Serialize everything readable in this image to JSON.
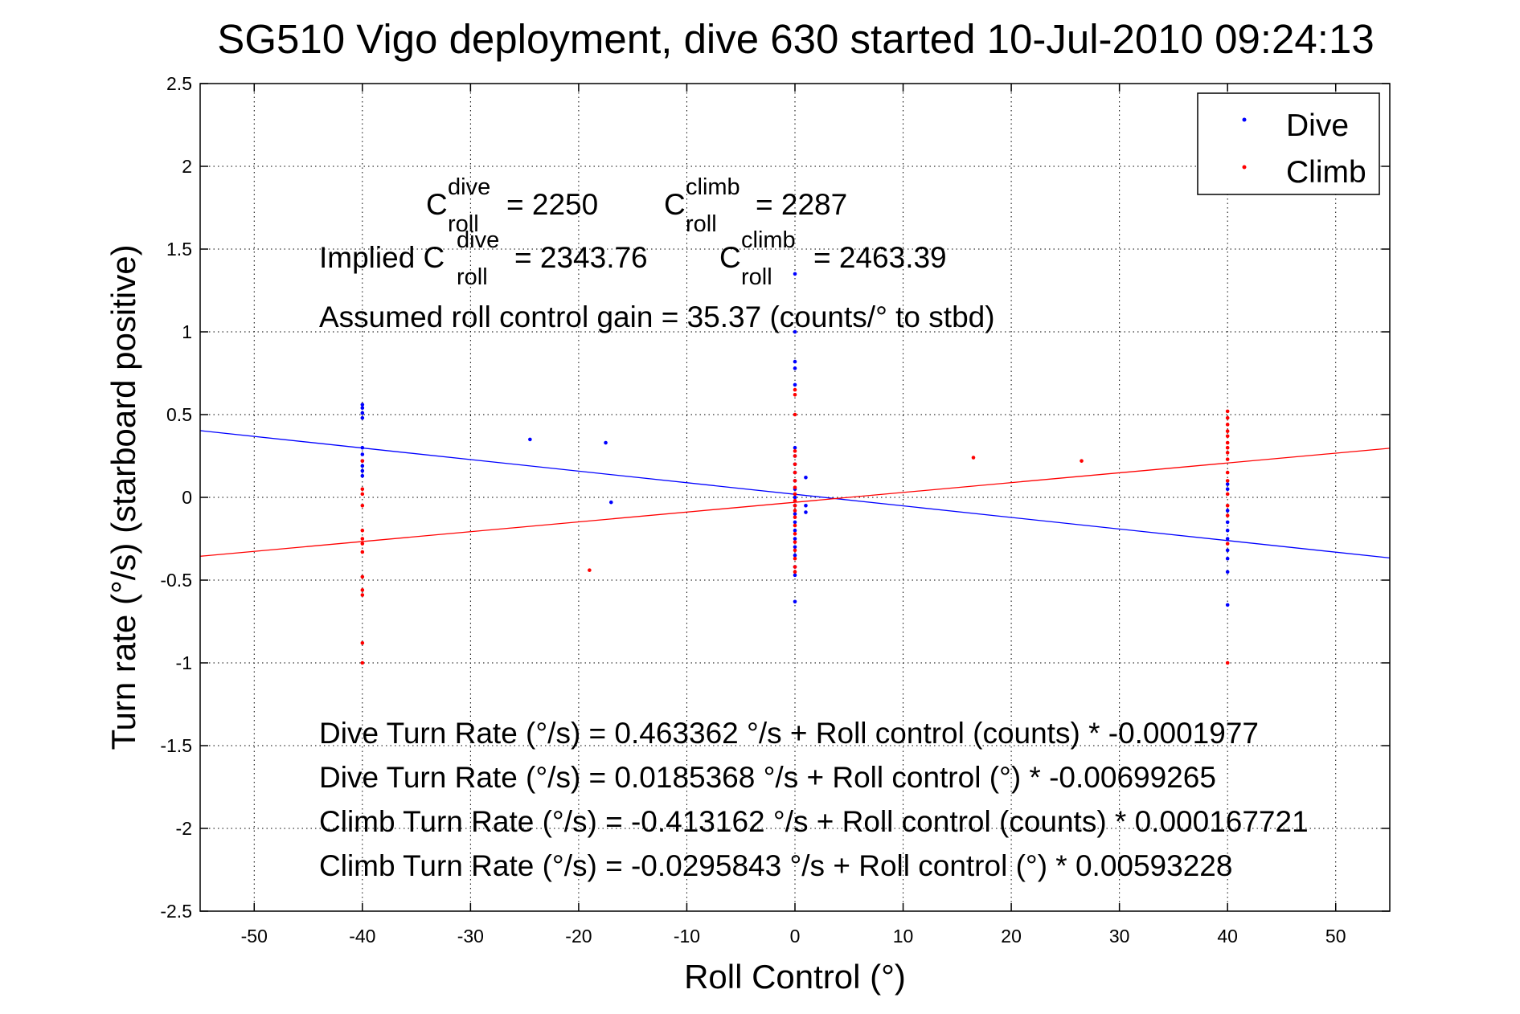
{
  "chart_data": {
    "type": "scatter",
    "title": "SG510 Vigo deployment, dive 630 started 10-Jul-2010 09:24:13",
    "xlabel": "Roll Control (°)",
    "ylabel": "Turn rate (°/s)  (starboard positive)",
    "xlim": [
      -55,
      55
    ],
    "ylim": [
      -2.5,
      2.5
    ],
    "xticks": [
      -50,
      -40,
      -30,
      -20,
      -10,
      0,
      10,
      20,
      30,
      40,
      50
    ],
    "yticks": [
      -2.5,
      -2,
      -1.5,
      -1,
      -0.5,
      0,
      0.5,
      1,
      1.5,
      2,
      2.5
    ],
    "xtick_labels": [
      "-50",
      "-40",
      "-30",
      "-20",
      "-10",
      "0",
      "10",
      "20",
      "30",
      "40",
      "50"
    ],
    "ytick_labels": [
      "-2.5",
      "-2",
      "-1.5",
      "-1",
      "-0.5",
      "0",
      "0.5",
      "1",
      "1.5",
      "2",
      "2.5"
    ],
    "grid": true,
    "legend_position": "top-right",
    "series": [
      {
        "name": "Dive",
        "color": "#0000ff",
        "points": [
          [
            -40,
            0.56
          ],
          [
            -40,
            0.54
          ],
          [
            -40,
            0.51
          ],
          [
            -40,
            0.48
          ],
          [
            -40,
            0.3
          ],
          [
            -40,
            0.26
          ],
          [
            -40,
            0.22
          ],
          [
            -40,
            0.19
          ],
          [
            -40,
            0.16
          ],
          [
            -40,
            0.13
          ],
          [
            -24.5,
            0.35
          ],
          [
            -17.5,
            0.33
          ],
          [
            -17,
            -0.03
          ],
          [
            0,
            1.35
          ],
          [
            0,
            1.0
          ],
          [
            0,
            0.82
          ],
          [
            0,
            0.78
          ],
          [
            0,
            0.68
          ],
          [
            0,
            0.3
          ],
          [
            0,
            0.25
          ],
          [
            0,
            0.2
          ],
          [
            0,
            0.15
          ],
          [
            0,
            0.1
          ],
          [
            0,
            0.05
          ],
          [
            0,
            0.0
          ],
          [
            0,
            -0.05
          ],
          [
            0,
            -0.1
          ],
          [
            0,
            -0.15
          ],
          [
            0,
            -0.2
          ],
          [
            0,
            -0.25
          ],
          [
            0,
            -0.3
          ],
          [
            0,
            -0.35
          ],
          [
            0,
            -0.42
          ],
          [
            0,
            -0.47
          ],
          [
            0,
            -0.63
          ],
          [
            1,
            0.12
          ],
          [
            1,
            -0.05
          ],
          [
            1,
            -0.09
          ],
          [
            40,
            0.08
          ],
          [
            40,
            0.05
          ],
          [
            40,
            -0.08
          ],
          [
            40,
            -0.15
          ],
          [
            40,
            -0.2
          ],
          [
            40,
            -0.25
          ],
          [
            40,
            -0.32
          ],
          [
            40,
            -0.37
          ],
          [
            40,
            -0.45
          ],
          [
            40,
            -0.65
          ]
        ],
        "fit": {
          "intercept": 0.0185368,
          "slope": -0.00699265
        }
      },
      {
        "name": "Climb",
        "color": "#ff0000",
        "points": [
          [
            -40,
            0.22
          ],
          [
            -40,
            0.05
          ],
          [
            -40,
            0.02
          ],
          [
            -40,
            -0.05
          ],
          [
            -40,
            -0.2
          ],
          [
            -40,
            -0.25
          ],
          [
            -40,
            -0.28
          ],
          [
            -40,
            -0.33
          ],
          [
            -40,
            -0.48
          ],
          [
            -40,
            -0.56
          ],
          [
            -40,
            -0.59
          ],
          [
            -40,
            -0.88
          ],
          [
            -40,
            -1.0
          ],
          [
            -19,
            -0.44
          ],
          [
            16.5,
            0.24
          ],
          [
            26.5,
            0.22
          ],
          [
            0,
            0.65
          ],
          [
            0,
            0.62
          ],
          [
            0,
            0.5
          ],
          [
            0,
            0.28
          ],
          [
            0,
            0.25
          ],
          [
            0,
            0.2
          ],
          [
            0,
            0.15
          ],
          [
            0,
            0.1
          ],
          [
            0,
            0.06
          ],
          [
            0,
            0.02
          ],
          [
            0,
            -0.02
          ],
          [
            0,
            -0.05
          ],
          [
            0,
            -0.08
          ],
          [
            0,
            -0.12
          ],
          [
            0,
            -0.17
          ],
          [
            0,
            -0.22
          ],
          [
            0,
            -0.27
          ],
          [
            0,
            -0.32
          ],
          [
            0,
            -0.37
          ],
          [
            0,
            -0.42
          ],
          [
            0,
            -0.45
          ],
          [
            40,
            0.52
          ],
          [
            40,
            0.48
          ],
          [
            40,
            0.44
          ],
          [
            40,
            0.4
          ],
          [
            40,
            0.37
          ],
          [
            40,
            0.33
          ],
          [
            40,
            0.3
          ],
          [
            40,
            0.27
          ],
          [
            40,
            0.23
          ],
          [
            40,
            0.15
          ],
          [
            40,
            0.1
          ],
          [
            40,
            0.02
          ],
          [
            40,
            -0.05
          ],
          [
            40,
            -0.11
          ],
          [
            40,
            -0.28
          ],
          [
            40,
            -1.0
          ]
        ],
        "fit": {
          "intercept": -0.0295843,
          "slope": 0.00593228
        }
      }
    ],
    "annotations": {
      "c_roll_dive": {
        "prefix": "C",
        "sup": "dive",
        "sub": "roll",
        "value": "= 2250"
      },
      "c_roll_climb": {
        "prefix": "C",
        "sup": "climb",
        "sub": "roll",
        "value": "= 2287"
      },
      "implied_dive": {
        "prefix": "Implied C",
        "sup": "dive",
        "sub": "roll",
        "value": "= 2343.76"
      },
      "implied_climb": {
        "prefix": "C",
        "sup": "climb",
        "sub": "roll",
        "value": "= 2463.39"
      },
      "gain": "Assumed roll control gain = 35.37 (counts/° to stbd)",
      "fit_lines": [
        "Dive Turn Rate (°/s) = 0.463362 °/s + Roll control (counts) * -0.0001977",
        "Dive Turn Rate (°/s) = 0.0185368 °/s + Roll control (°) * -0.00699265",
        "Climb Turn Rate (°/s) = -0.413162 °/s + Roll control (counts) * 0.000167721",
        "Climb Turn Rate (°/s) = -0.0295843 °/s + Roll control (°) * 0.00593228"
      ]
    }
  }
}
